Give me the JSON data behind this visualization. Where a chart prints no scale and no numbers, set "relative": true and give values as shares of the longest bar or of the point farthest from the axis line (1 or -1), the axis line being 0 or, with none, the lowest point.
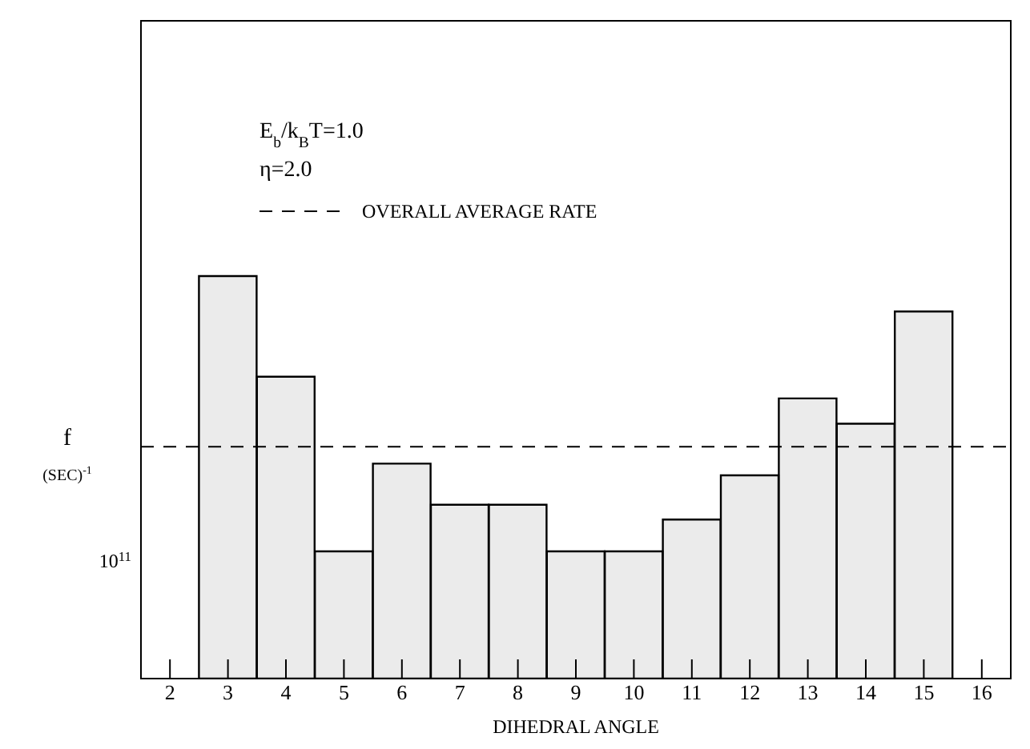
{
  "chart_data": {
    "type": "bar",
    "xlabel": "DIHEDRAL ANGLE",
    "ylabel": "f (SEC)$^{-1}$",
    "relative": true,
    "categories": [
      "2",
      "3",
      "4",
      "5",
      "6",
      "7",
      "8",
      "9",
      "10",
      "11",
      "12",
      "13",
      "14",
      "15",
      "16"
    ],
    "values": [
      null,
      1,
      0.75,
      0.316,
      0.534,
      0.432,
      0.432,
      0.316,
      0.316,
      0.395,
      0.505,
      0.696,
      0.633,
      0.912,
      null
    ],
    "color": "#000000",
    "ref_lines": [
      {
        "axis": "y",
        "value": 0.576,
        "label": "OVERALL AVERAGE RATE",
        "line_style": "dashed",
        "color": "#000000"
      }
    ],
    "annotations": [
      "E$_{b}$/k$_{B}$T=1.0",
      "η=2.0",
      "10$^{11}$"
    ],
    "grid": false
  }
}
